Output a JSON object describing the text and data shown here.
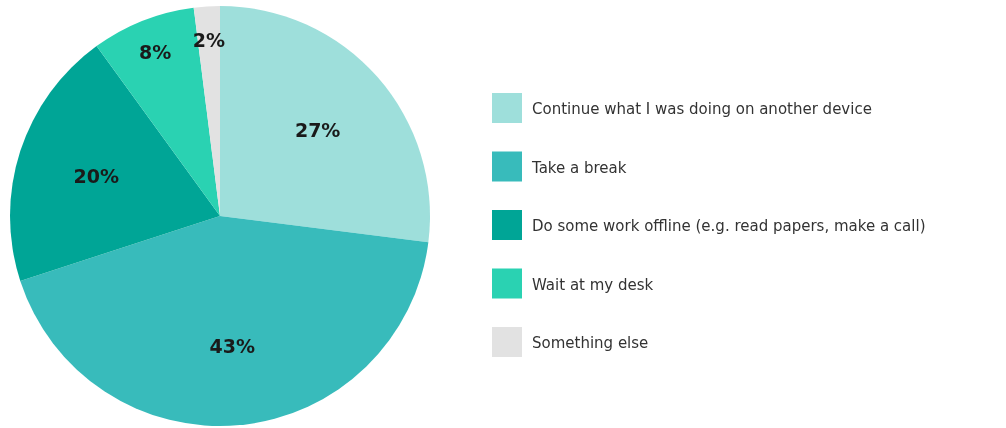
{
  "chart_data": {
    "type": "pie",
    "categories": [
      "Continue what I was doing on another device",
      "Take a break",
      "Do some work offline (e.g. read papers, make a call)",
      "Wait at my desk",
      "Something else"
    ],
    "values": [
      27,
      43,
      20,
      8,
      2
    ],
    "colors": [
      "#9edfdb",
      "#38bbbb",
      "#00a596",
      "#2ad2b2",
      "#e2e2e2"
    ],
    "value_labels": [
      "27%",
      "43%",
      "20%",
      "8%",
      "2%"
    ],
    "legend": "right"
  }
}
